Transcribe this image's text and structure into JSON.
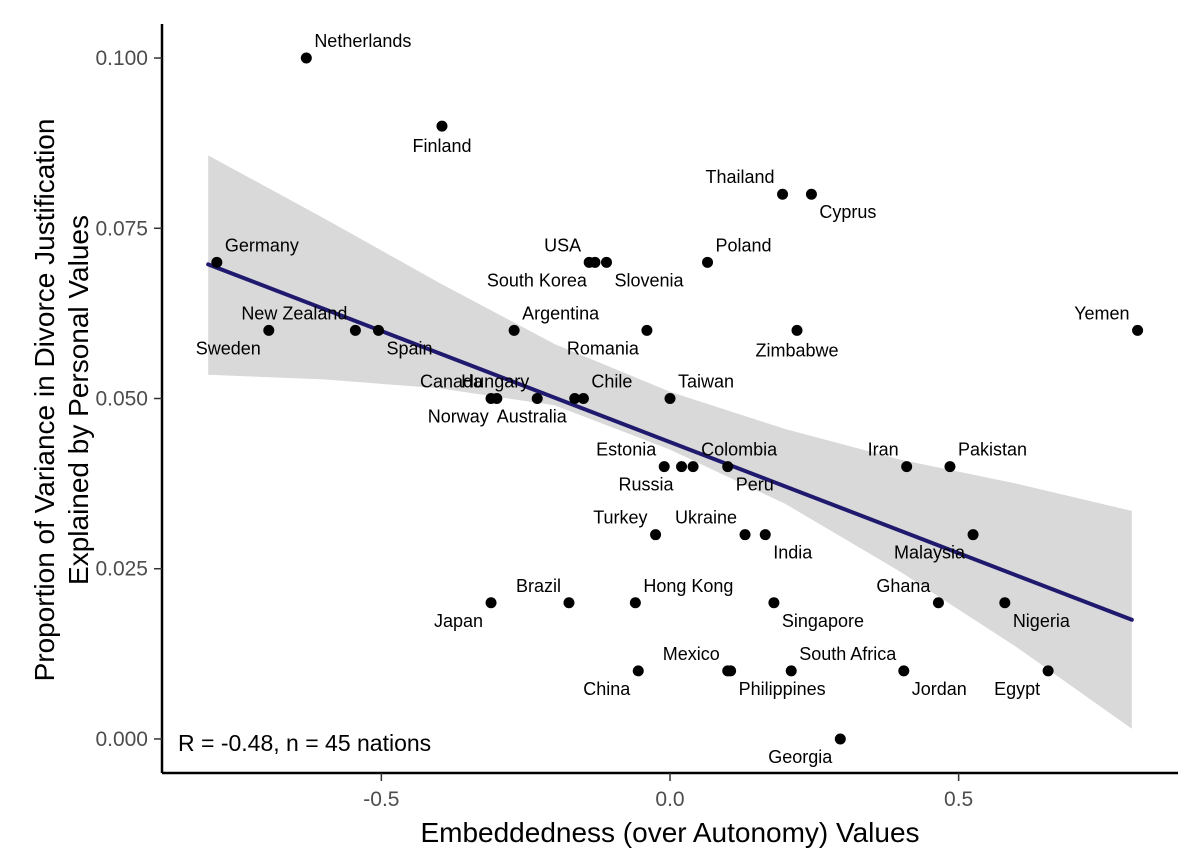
{
  "chart_data": {
    "type": "scatter",
    "xlabel": "Embeddedness (over Autonomy) Values",
    "ylabel_lines": [
      "Proportion of Variance in Divorce Justification",
      "Explained by Personal Values"
    ],
    "xlim": [
      -0.88,
      0.88
    ],
    "ylim": [
      -0.005,
      0.105
    ],
    "x_ticks": [
      -0.5,
      0.0,
      0.5
    ],
    "x_tick_labels": [
      "-0.5",
      "0.0",
      "0.5"
    ],
    "y_ticks": [
      0.0,
      0.025,
      0.05,
      0.075,
      0.1
    ],
    "y_tick_labels": [
      "0.000",
      "0.025",
      "0.050",
      "0.075",
      "0.100"
    ],
    "grid": false,
    "annotation": "R = -0.48, n = 45 nations",
    "colors": {
      "point": "#000000",
      "trend": "#1f1a6e",
      "band": "#d9d9d9",
      "axis_text": "#4d4d4d"
    },
    "trend_line": {
      "x": [
        -0.8,
        0.8
      ],
      "y": [
        0.0697,
        0.0175
      ]
    },
    "confidence_band": {
      "x": [
        -0.8,
        -0.6,
        -0.4,
        -0.2,
        0.0,
        0.2,
        0.4,
        0.6,
        0.8
      ],
      "lower": [
        0.0535,
        0.0528,
        0.0515,
        0.049,
        0.0425,
        0.0345,
        0.0245,
        0.0135,
        0.0015
      ],
      "upper": [
        0.0857,
        0.0765,
        0.067,
        0.058,
        0.051,
        0.0455,
        0.041,
        0.0375,
        0.0335
      ]
    },
    "points": [
      {
        "name": "Netherlands",
        "x": -0.63,
        "y": 0.1,
        "label_pos": "above-right"
      },
      {
        "name": "Finland",
        "x": -0.395,
        "y": 0.09,
        "label_pos": "below"
      },
      {
        "name": "Thailand",
        "x": 0.195,
        "y": 0.08,
        "label_pos": "above-left"
      },
      {
        "name": "Cyprus",
        "x": 0.245,
        "y": 0.08,
        "label_pos": "below-right"
      },
      {
        "name": "Germany",
        "x": -0.785,
        "y": 0.07,
        "label_pos": "above-right"
      },
      {
        "name": "USA",
        "x": -0.14,
        "y": 0.07,
        "label_pos": "above-left"
      },
      {
        "name": "South Korea",
        "x": -0.13,
        "y": 0.07,
        "label_pos": "below-left"
      },
      {
        "name": "Slovenia",
        "x": -0.11,
        "y": 0.07,
        "label_pos": "below-right"
      },
      {
        "name": "Poland",
        "x": 0.065,
        "y": 0.07,
        "label_pos": "above-right"
      },
      {
        "name": "Sweden",
        "x": -0.695,
        "y": 0.06,
        "label_pos": "below-left"
      },
      {
        "name": "New Zealand",
        "x": -0.545,
        "y": 0.06,
        "label_pos": "above-left"
      },
      {
        "name": "Spain",
        "x": -0.505,
        "y": 0.06,
        "label_pos": "below-right"
      },
      {
        "name": "Argentina",
        "x": -0.27,
        "y": 0.06,
        "label_pos": "above-right"
      },
      {
        "name": "Romania",
        "x": -0.04,
        "y": 0.06,
        "label_pos": "below-left"
      },
      {
        "name": "Zimbabwe",
        "x": 0.22,
        "y": 0.06,
        "label_pos": "below"
      },
      {
        "name": "Yemen",
        "x": 0.81,
        "y": 0.06,
        "label_pos": "above-left"
      },
      {
        "name": "Canada",
        "x": -0.31,
        "y": 0.05,
        "label_pos": "above-left"
      },
      {
        "name": "Norway",
        "x": -0.3,
        "y": 0.05,
        "label_pos": "below-left"
      },
      {
        "name": "Hungary",
        "x": -0.23,
        "y": 0.05,
        "label_pos": "above-left"
      },
      {
        "name": "Australia",
        "x": -0.165,
        "y": 0.05,
        "label_pos": "below-left"
      },
      {
        "name": "Chile",
        "x": -0.15,
        "y": 0.05,
        "label_pos": "above-right"
      },
      {
        "name": "Taiwan",
        "x": 0.0,
        "y": 0.05,
        "label_pos": "above-right"
      },
      {
        "name": "Estonia",
        "x": -0.01,
        "y": 0.04,
        "label_pos": "above-left"
      },
      {
        "name": "Russia",
        "x": 0.02,
        "y": 0.04,
        "label_pos": "below-left"
      },
      {
        "name": "Colombia",
        "x": 0.04,
        "y": 0.04,
        "label_pos": "above-right"
      },
      {
        "name": "Peru",
        "x": 0.1,
        "y": 0.04,
        "label_pos": "below-right"
      },
      {
        "name": "Iran",
        "x": 0.41,
        "y": 0.04,
        "label_pos": "above-left"
      },
      {
        "name": "Pakistan",
        "x": 0.485,
        "y": 0.04,
        "label_pos": "above-right"
      },
      {
        "name": "Turkey",
        "x": -0.025,
        "y": 0.03,
        "label_pos": "above-left"
      },
      {
        "name": "Ukraine",
        "x": 0.13,
        "y": 0.03,
        "label_pos": "above-left"
      },
      {
        "name": "India",
        "x": 0.165,
        "y": 0.03,
        "label_pos": "below-right"
      },
      {
        "name": "Malaysia",
        "x": 0.525,
        "y": 0.03,
        "label_pos": "below-left"
      },
      {
        "name": "Brazil",
        "x": -0.175,
        "y": 0.02,
        "label_pos": "above-left"
      },
      {
        "name": "Japan",
        "x": -0.31,
        "y": 0.02,
        "label_pos": "below-left"
      },
      {
        "name": "Hong Kong",
        "x": -0.06,
        "y": 0.02,
        "label_pos": "above-right"
      },
      {
        "name": "Singapore",
        "x": 0.18,
        "y": 0.02,
        "label_pos": "below-right"
      },
      {
        "name": "Ghana",
        "x": 0.465,
        "y": 0.02,
        "label_pos": "above-left"
      },
      {
        "name": "Nigeria",
        "x": 0.58,
        "y": 0.02,
        "label_pos": "below-right"
      },
      {
        "name": "China",
        "x": -0.055,
        "y": 0.01,
        "label_pos": "below-left"
      },
      {
        "name": "Mexico",
        "x": 0.1,
        "y": 0.01,
        "label_pos": "above-left"
      },
      {
        "name": "Philippines",
        "x": 0.105,
        "y": 0.01,
        "label_pos": "below-right"
      },
      {
        "name": "South Africa",
        "x": 0.21,
        "y": 0.01,
        "label_pos": "above-right"
      },
      {
        "name": "Jordan",
        "x": 0.405,
        "y": 0.01,
        "label_pos": "below-right"
      },
      {
        "name": "Egypt",
        "x": 0.655,
        "y": 0.01,
        "label_pos": "below-left"
      },
      {
        "name": "Georgia",
        "x": 0.295,
        "y": 0.0,
        "label_pos": "below-left"
      }
    ]
  }
}
